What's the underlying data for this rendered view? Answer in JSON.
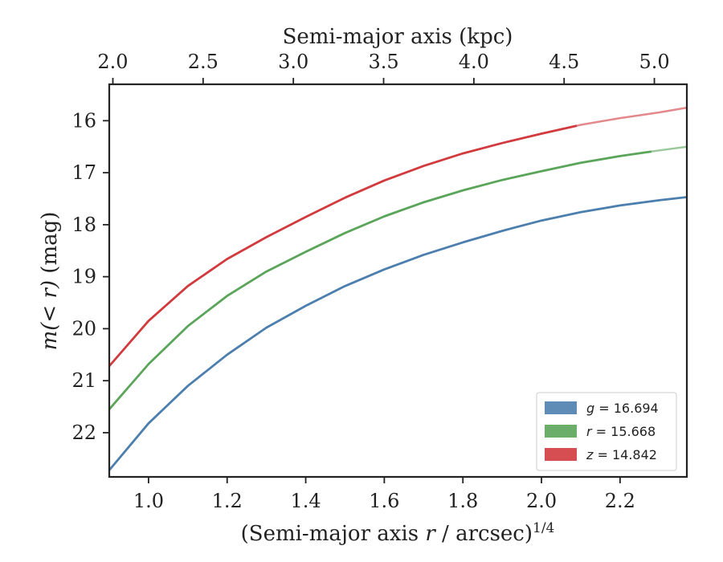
{
  "chart_data": {
    "type": "line",
    "xlabel_bottom": {
      "prefix": "(Semi-major axis ",
      "var": "r",
      "mid": " / arcsec)",
      "sup": "1/4"
    },
    "xlabel_top": "Semi-major axis (kpc)",
    "ylabel": {
      "m": "m",
      "expr": "(< r)",
      "unit": " (mag)"
    },
    "x_bottom_lim": [
      0.9,
      2.37
    ],
    "x_top_lim": [
      1.98,
      5.18
    ],
    "ylim": [
      22.85,
      15.3
    ],
    "y_inverted": true,
    "x_bottom_ticks": [
      "1.0",
      "1.2",
      "1.4",
      "1.6",
      "1.8",
      "2.0",
      "2.2"
    ],
    "x_top_ticks": [
      "2.0",
      "2.5",
      "3.0",
      "3.5",
      "4.0",
      "4.5",
      "5.0"
    ],
    "y_ticks": [
      "16",
      "17",
      "18",
      "19",
      "20",
      "21",
      "22"
    ],
    "legend_position": "lower-right",
    "series": [
      {
        "name": "g = 16.694",
        "legend_var": "g",
        "legend_val": "= 16.694",
        "color": "#4c7fae",
        "x": [
          0.9,
          1.0,
          1.1,
          1.2,
          1.3,
          1.4,
          1.5,
          1.6,
          1.7,
          1.8,
          1.9,
          2.0,
          2.1,
          2.2,
          2.3,
          2.37
        ],
        "y": [
          22.72,
          21.82,
          21.1,
          20.5,
          19.98,
          19.56,
          19.18,
          18.86,
          18.58,
          18.34,
          18.12,
          17.92,
          17.76,
          17.63,
          17.53,
          17.47
        ],
        "x_light_from": 2.37
      },
      {
        "name": "r = 15.668",
        "legend_var": "r",
        "legend_val": "= 15.668",
        "color": "#5aa55a",
        "x": [
          0.9,
          1.0,
          1.1,
          1.2,
          1.3,
          1.4,
          1.5,
          1.6,
          1.7,
          1.8,
          1.9,
          2.0,
          2.1,
          2.2,
          2.3,
          2.37
        ],
        "y": [
          21.55,
          20.68,
          19.95,
          19.37,
          18.9,
          18.52,
          18.16,
          17.84,
          17.57,
          17.34,
          17.14,
          16.97,
          16.81,
          16.68,
          16.57,
          16.5
        ],
        "x_light_from": 2.28
      },
      {
        "name": "z = 14.842",
        "legend_var": "z",
        "legend_val": "= 14.842",
        "color": "#d13b3e",
        "x": [
          0.9,
          1.0,
          1.1,
          1.2,
          1.3,
          1.4,
          1.5,
          1.6,
          1.7,
          1.8,
          1.9,
          2.0,
          2.1,
          2.2,
          2.3,
          2.37
        ],
        "y": [
          20.72,
          19.85,
          19.18,
          18.66,
          18.24,
          17.85,
          17.48,
          17.15,
          16.87,
          16.63,
          16.43,
          16.25,
          16.08,
          15.95,
          15.84,
          15.75
        ],
        "x_light_from": 2.09
      }
    ]
  }
}
